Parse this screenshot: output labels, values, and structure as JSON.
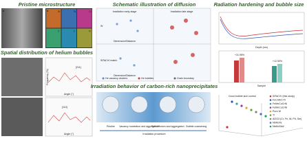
{
  "pristine": {
    "title": "Pristine microstructure",
    "panels": [
      "a",
      "b"
    ],
    "elements": [
      "W",
      "Ta",
      "Cr",
      "V",
      "C",
      "N"
    ]
  },
  "diffusion": {
    "title": "Schematic illustration of diffusion",
    "stages": [
      "Irradiation early-stage",
      "Irradiation late-stage"
    ],
    "rows": [
      "W",
      "WTaCrV matrix"
    ],
    "axis": "Dimension/Distance",
    "legend": [
      "He vacancy clusters",
      "He bubbles",
      "Grain boundary"
    ]
  },
  "hardening": {
    "title": "Radiation hardening and bubble size",
    "line_xlabel": "Depth (nm)",
    "bar_xlabel": "Sample",
    "bar_labels": [
      "+31.95%",
      "+12.50%"
    ]
  },
  "bubbles": {
    "title": "Spatial distribution of helium bubbles",
    "labels": [
      "[211]",
      "[110]"
    ],
    "xlabel": "Angle (°)",
    "ylabel": "Frequency (%)"
  },
  "precipitates": {
    "title": "Irradiation behavior of carbon-rich nanoprecipitates",
    "steps": [
      "Pristine",
      "Vacancy nucleation and aggregation",
      "Self-diffusion and aggregation",
      "Bubble coarsening"
    ],
    "procedure": "Irradiation procedure"
  },
  "comparison": {
    "note": "Good bubble size control",
    "legend": [
      "WTaCrV (this study)",
      "FeCrAl/CrTi",
      "FeMnCoCrNi",
      "FeMnCoCrNi",
      "Pure W",
      "Ti",
      "Al2O3 (Cr, Fe, Ni, Pd, Sm)",
      "NbMoTa",
      "NbMoTaW"
    ]
  }
}
